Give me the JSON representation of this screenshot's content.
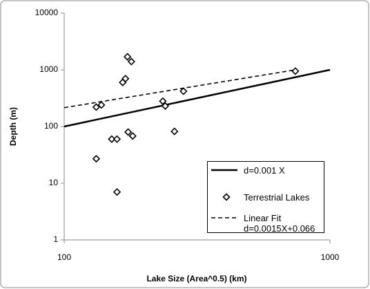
{
  "chart_data": {
    "type": "scatter",
    "x_label": "Lake Size (Area^0.5)  (km)",
    "y_label": "Depth (m)",
    "xscale": "log",
    "yscale": "log",
    "xlim": [
      100,
      1000
    ],
    "xticks": [
      100,
      1000
    ],
    "ylim": [
      1,
      10000
    ],
    "yticks": [
      1,
      10,
      100,
      1000,
      10000
    ],
    "series": [
      {
        "name": "d=0.001 X",
        "style": "line",
        "color": "#000000",
        "x": [
          100,
          1000
        ],
        "values": [
          100,
          1000
        ]
      },
      {
        "name": "Terrestrial Lakes",
        "style": "marker",
        "color": "#000000",
        "x": [
          132,
          138,
          132,
          151,
          158,
          158,
          166,
          170,
          173,
          179,
          174,
          181,
          235,
          240,
          260,
          281,
          741
        ],
        "values": [
          220,
          240,
          27,
          60,
          60,
          7,
          600,
          700,
          1700,
          1400,
          80,
          68,
          280,
          230,
          82,
          420,
          950
        ]
      },
      {
        "name": "Linear Fit\nd=0.0015X+0.066",
        "style": "dashed",
        "color": "#000000",
        "x": [
          100,
          741
        ],
        "values": [
          215,
          1000
        ]
      }
    ]
  }
}
